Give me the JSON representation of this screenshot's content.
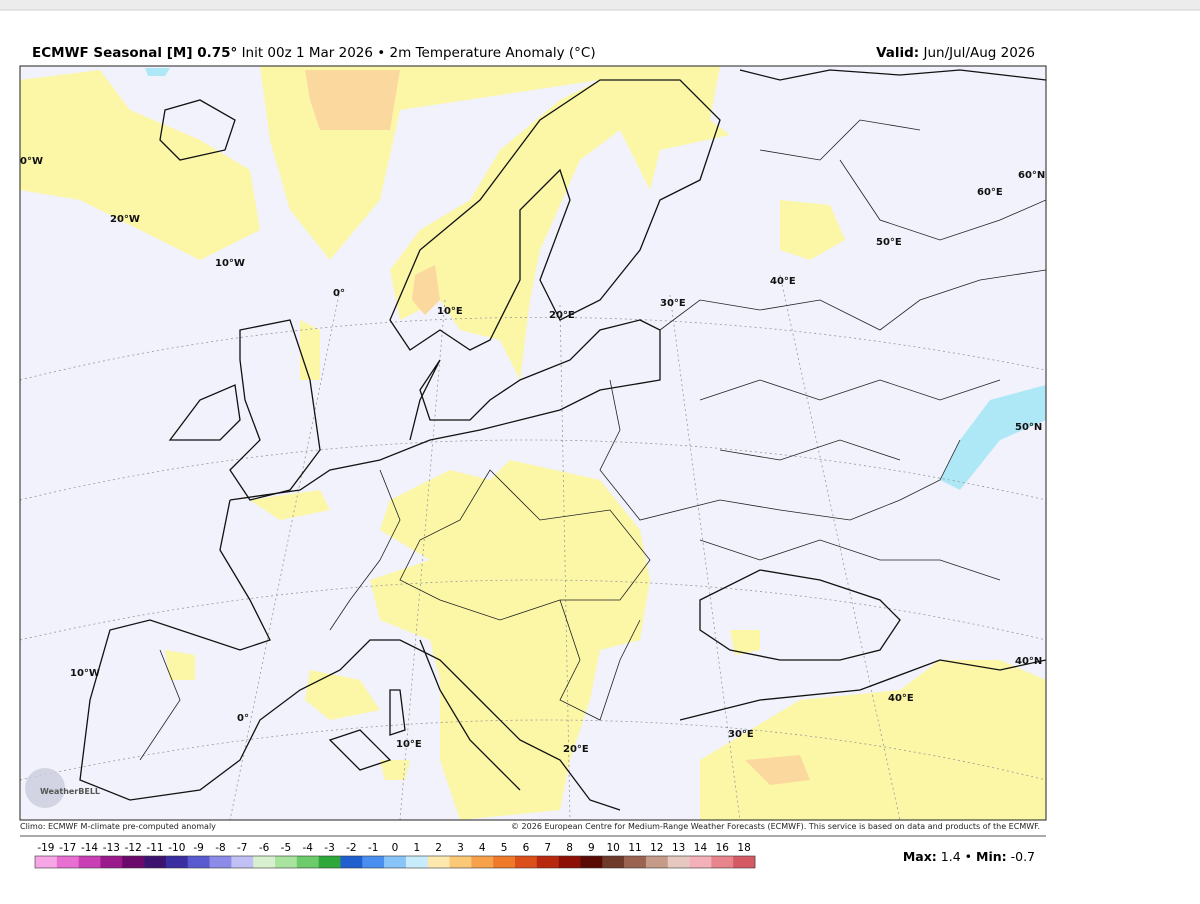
{
  "header": {
    "title_bold": "ECMWF Seasonal [M] 0.75°",
    "title_rest": "Init 00z 1 Mar 2026 • 2m Temperature Anomaly (°C)",
    "valid_label": "Valid:",
    "valid_value": "Jun/Jul/Aug 2026"
  },
  "map": {
    "grid_labels": [
      "0°W",
      "20°W",
      "10°W",
      "0°",
      "10°E",
      "20°E",
      "30°E",
      "40°E",
      "50°E",
      "60°E",
      "60°N",
      "50°N",
      "40°N",
      "40°E",
      "30°E",
      "20°E",
      "10°E",
      "0°",
      "10°W"
    ],
    "logo": "WeatherBELL"
  },
  "footer": {
    "left": "Climo: ECMWF M-climate pre-computed anomaly",
    "right": "© 2026 European Centre for Medium-Range Weather Forecasts (ECMWF). This service is based on data and products of the ECMWF."
  },
  "colorbar": {
    "labels": [
      -19,
      -17,
      -14,
      -13,
      -12,
      -11,
      -10,
      -9,
      -8,
      -7,
      -6,
      -5,
      -4,
      -3,
      -2,
      -1,
      0,
      1,
      2,
      3,
      4,
      5,
      6,
      7,
      8,
      9,
      10,
      11,
      12,
      13,
      14,
      16,
      18
    ],
    "colors": [
      "#f7a6e6",
      "#e76fd2",
      "#c93fb4",
      "#9a1a8c",
      "#6a0a6a",
      "#3c1470",
      "#3a2fa0",
      "#5a5ad0",
      "#8c8ce8",
      "#c0c0f4",
      "#d8f0d0",
      "#a8e4a0",
      "#6ccc6c",
      "#2ea83a",
      "#1f5fd0",
      "#4a8ef0",
      "#88c4f8",
      "#c8ecfc",
      "#fde8b0",
      "#fbc878",
      "#f7a24a",
      "#ef7a2a",
      "#dc4e1a",
      "#b8280e",
      "#8c1006",
      "#5a0a04",
      "#6e3a2a",
      "#9a6450",
      "#c49a88",
      "#e6c8c0",
      "#f4b0b8",
      "#e8848c",
      "#d45a64"
    ]
  },
  "stats": {
    "max_label": "Max:",
    "max": 1.4,
    "separator": "•",
    "min_label": "Min:",
    "min": -0.7
  }
}
